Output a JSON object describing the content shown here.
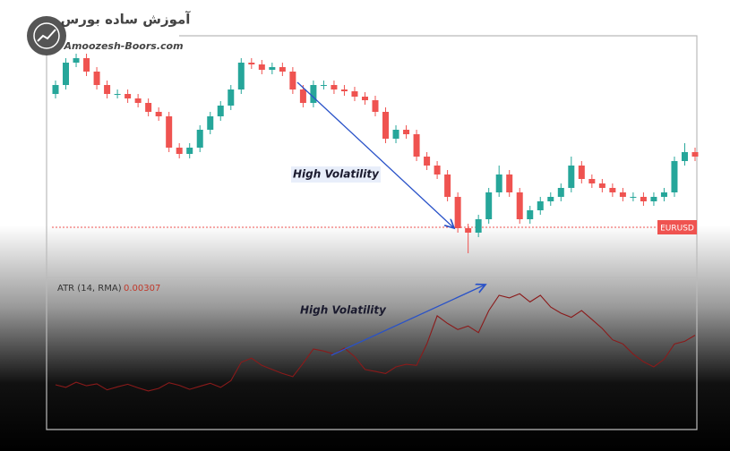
{
  "logo": {
    "title": "آموزش ساده بورس",
    "subtitle": "Amoozesh-Boors.com"
  },
  "chart_data": {
    "type": "candlestick",
    "symbol": "EURUSD",
    "ylim": [
      1.08,
      1.1055
    ],
    "up_color": "#26a69a",
    "down_color": "#ef5350",
    "price_line": 1.0846,
    "price_line_color": "#ef5350",
    "open": [
      1.0995,
      1.1005,
      1.103,
      1.1035,
      1.102,
      1.1005,
      1.0995,
      1.0995,
      1.099,
      1.0985,
      1.0975,
      1.097,
      1.0935,
      1.0928,
      1.0935,
      1.0955,
      1.097,
      1.0982,
      1.1,
      1.103,
      1.1028,
      1.1022,
      1.1025,
      1.102,
      1.1,
      1.0985,
      1.1005,
      1.1005,
      1.1,
      1.0998,
      1.0992,
      1.0988,
      1.0975,
      1.0945,
      1.0955,
      1.095,
      1.0925,
      1.0915,
      1.0905,
      1.088,
      1.0845,
      1.084,
      1.0855,
      1.0885,
      1.0905,
      1.0885,
      1.0855,
      1.0865,
      1.0875,
      1.088,
      1.089,
      1.0915,
      1.09,
      1.0895,
      1.089,
      1.0885,
      1.088,
      1.088,
      1.0875,
      1.088,
      1.0885,
      1.092,
      1.093
    ],
    "high": [
      1.101,
      1.1035,
      1.104,
      1.104,
      1.1025,
      1.101,
      1.1,
      1.1,
      1.0995,
      1.099,
      1.098,
      1.0975,
      1.094,
      1.094,
      1.096,
      1.0975,
      1.0987,
      1.1005,
      1.1035,
      1.1035,
      1.1033,
      1.103,
      1.103,
      1.1025,
      1.1005,
      1.101,
      1.101,
      1.101,
      1.1005,
      1.1003,
      1.0997,
      1.0993,
      1.098,
      1.096,
      1.096,
      1.0955,
      1.093,
      1.092,
      1.091,
      1.0885,
      1.085,
      1.086,
      1.089,
      1.0915,
      1.091,
      1.089,
      1.087,
      1.088,
      1.0885,
      1.0895,
      1.0925,
      1.092,
      1.0905,
      1.09,
      1.0895,
      1.089,
      1.0885,
      1.0885,
      1.0885,
      1.089,
      1.0925,
      1.094,
      1.0935
    ],
    "low": [
      1.099,
      1.1,
      1.1025,
      1.1015,
      1.1,
      1.099,
      1.099,
      1.0985,
      1.098,
      1.097,
      1.0965,
      1.093,
      1.0923,
      1.0923,
      1.093,
      1.095,
      1.0965,
      1.0977,
      1.0995,
      1.1023,
      1.1017,
      1.1017,
      1.1015,
      1.0995,
      1.098,
      1.098,
      1.1,
      1.0995,
      1.0993,
      1.0987,
      1.0983,
      1.097,
      1.094,
      1.094,
      1.0945,
      1.092,
      1.091,
      1.09,
      1.0875,
      1.084,
      1.0817,
      1.0835,
      1.085,
      1.088,
      1.088,
      1.085,
      1.085,
      1.086,
      1.087,
      1.0875,
      1.0885,
      1.0895,
      1.089,
      1.0885,
      1.088,
      1.0875,
      1.0875,
      1.087,
      1.087,
      1.0875,
      1.088,
      1.0915,
      1.092
    ],
    "close": [
      1.1005,
      1.103,
      1.1035,
      1.102,
      1.1005,
      1.0995,
      1.0995,
      1.099,
      1.0985,
      1.0975,
      1.097,
      1.0935,
      1.0928,
      1.0935,
      1.0955,
      1.097,
      1.0982,
      1.1,
      1.103,
      1.1028,
      1.1022,
      1.1025,
      1.102,
      1.1,
      1.0985,
      1.1005,
      1.1005,
      1.1,
      1.0998,
      1.0992,
      1.0988,
      1.0975,
      1.0945,
      1.0955,
      1.095,
      1.0925,
      1.0915,
      1.0905,
      1.088,
      1.0845,
      1.084,
      1.0855,
      1.0885,
      1.0905,
      1.0885,
      1.0855,
      1.0865,
      1.0875,
      1.088,
      1.089,
      1.0915,
      1.09,
      1.0895,
      1.089,
      1.0885,
      1.088,
      1.088,
      1.0875,
      1.088,
      1.0885,
      1.092,
      1.093,
      1.0925
    ],
    "indicator": {
      "name": "ATR (14, RMA)",
      "color": "#8b1a1a",
      "ylim": [
        0.0014,
        0.0042
      ],
      "values": [
        0.0021,
        0.00205,
        0.00215,
        0.00208,
        0.00212,
        0.002,
        0.00206,
        0.00211,
        0.00204,
        0.00198,
        0.00203,
        0.00214,
        0.00209,
        0.00201,
        0.00207,
        0.00213,
        0.00205,
        0.00218,
        0.00254,
        0.00262,
        0.00248,
        0.0024,
        0.00232,
        0.00226,
        0.00252,
        0.0028,
        0.00276,
        0.0027,
        0.00282,
        0.00265,
        0.0024,
        0.00236,
        0.00232,
        0.00245,
        0.0025,
        0.00248,
        0.0029,
        0.00345,
        0.0033,
        0.00318,
        0.00325,
        0.00312,
        0.00355,
        0.00385,
        0.0038,
        0.00388,
        0.00372,
        0.00385,
        0.00362,
        0.0035,
        0.00342,
        0.00355,
        0.00338,
        0.0032,
        0.00298,
        0.0029,
        0.0027,
        0.00255,
        0.00245,
        0.0026,
        0.0029,
        0.00295,
        0.00307
      ]
    },
    "annotations": [
      "High Volatility",
      "High Volatility"
    ]
  }
}
